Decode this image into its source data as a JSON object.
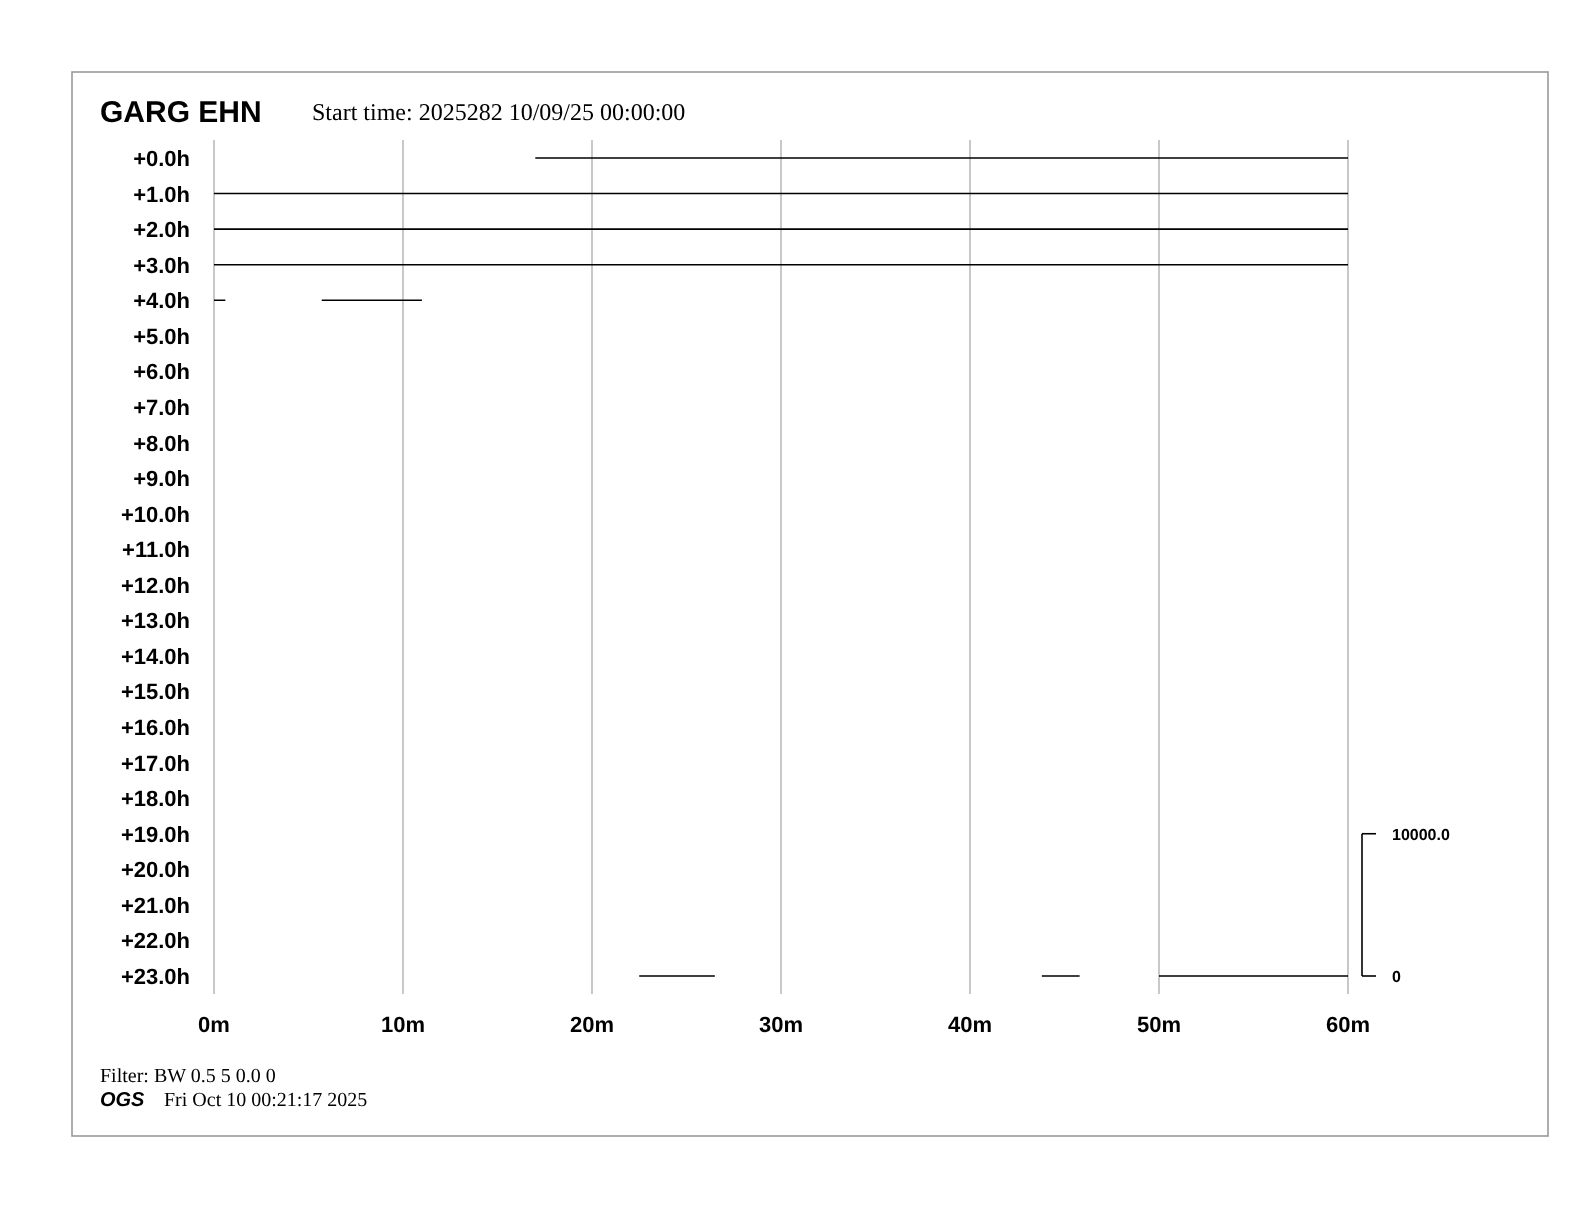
{
  "chart_data": {
    "type": "line",
    "title": "GARG EHN",
    "subtitle": "Start time: 2025282 10/09/25 00:00:00",
    "annotations": [
      "Filter: BW 0.5 5 0.0 0",
      "OGS",
      "Fri Oct 10 00:21:17 2025"
    ],
    "xlim": [
      0,
      60
    ],
    "xticks": [
      {
        "value": 0,
        "label": "0m"
      },
      {
        "value": 10,
        "label": "10m"
      },
      {
        "value": 20,
        "label": "20m"
      },
      {
        "value": 30,
        "label": "30m"
      },
      {
        "value": 40,
        "label": "40m"
      },
      {
        "value": 50,
        "label": "50m"
      },
      {
        "value": 60,
        "label": "60m"
      }
    ],
    "ylim": [
      23.5,
      -0.5
    ],
    "yticks": [
      {
        "value": 0,
        "label": "+0.0h"
      },
      {
        "value": 1,
        "label": "+1.0h"
      },
      {
        "value": 2,
        "label": "+2.0h"
      },
      {
        "value": 3,
        "label": "+3.0h"
      },
      {
        "value": 4,
        "label": "+4.0h"
      },
      {
        "value": 5,
        "label": "+5.0h"
      },
      {
        "value": 6,
        "label": "+6.0h"
      },
      {
        "value": 7,
        "label": "+7.0h"
      },
      {
        "value": 8,
        "label": "+8.0h"
      },
      {
        "value": 9,
        "label": "+9.0h"
      },
      {
        "value": 10,
        "label": "+10.0h"
      },
      {
        "value": 11,
        "label": "+11.0h"
      },
      {
        "value": 12,
        "label": "+12.0h"
      },
      {
        "value": 13,
        "label": "+13.0h"
      },
      {
        "value": 14,
        "label": "+14.0h"
      },
      {
        "value": 15,
        "label": "+15.0h"
      },
      {
        "value": 16,
        "label": "+16.0h"
      },
      {
        "value": 17,
        "label": "+17.0h"
      },
      {
        "value": 18,
        "label": "+18.0h"
      },
      {
        "value": 19,
        "label": "+19.0h"
      },
      {
        "value": 20,
        "label": "+20.0h"
      },
      {
        "value": 21,
        "label": "+21.0h"
      },
      {
        "value": 22,
        "label": "+22.0h"
      },
      {
        "value": 23,
        "label": "+23.0h"
      }
    ],
    "y2lim": [
      -1250,
      58750
    ],
    "y2ticks": [
      {
        "value": 10000,
        "label": "10000.0"
      },
      {
        "value": 0,
        "label": "0"
      }
    ],
    "grid": "x",
    "marker": "none",
    "line_style": "solid",
    "series": [
      {
        "color": "#000000",
        "x": [
          17,
          60
        ],
        "values": [
          0,
          0
        ]
      },
      {
        "color": "#000000",
        "x": [
          0,
          60
        ],
        "values": [
          1,
          1
        ]
      },
      {
        "color": "#000000",
        "x": [
          0,
          60
        ],
        "values": [
          2,
          2
        ]
      },
      {
        "color": "#000000",
        "x": [
          0,
          60
        ],
        "values": [
          3,
          3
        ]
      },
      {
        "color": "#000000",
        "x": [
          0,
          0.6,
          3,
          5.7,
          11
        ],
        "values": [
          4,
          4,
          null,
          4,
          4
        ]
      },
      {
        "color": "#000000",
        "x": [
          22.5,
          26.5,
          35,
          43.8,
          45.8,
          48,
          50,
          60
        ],
        "values": [
          23,
          23,
          null,
          23,
          23,
          null,
          23,
          23
        ]
      }
    ]
  }
}
